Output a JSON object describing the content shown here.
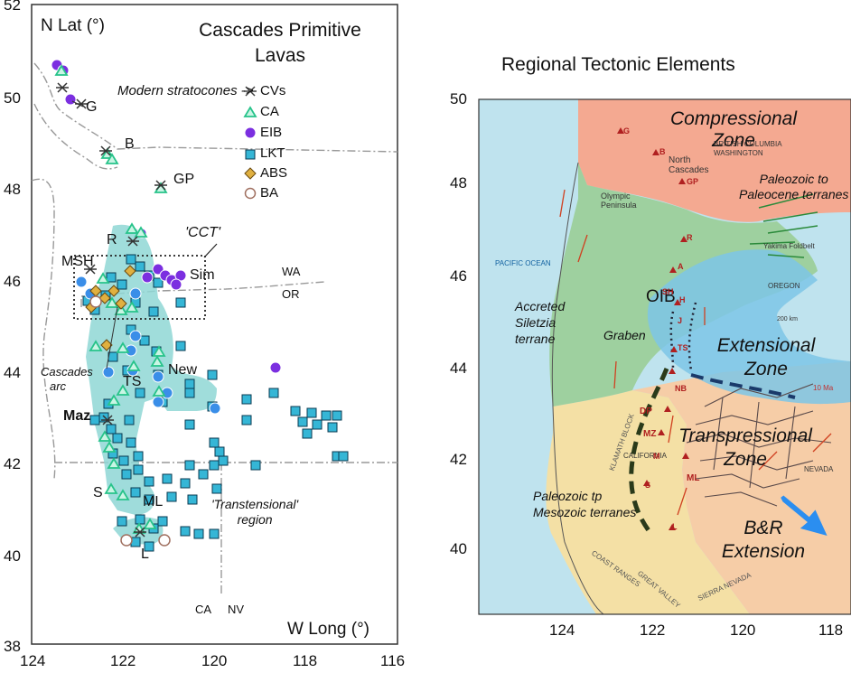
{
  "left_map": {
    "title_line1": "Cascades Primitive",
    "title_line2": "Lavas",
    "y_axis_label": "N Lat (°)",
    "x_axis_label": "W Long (°)",
    "y_ticks": [
      "52",
      "50",
      "48",
      "46",
      "44",
      "42",
      "40",
      "38"
    ],
    "x_ticks": [
      "124",
      "122",
      "120",
      "118",
      "116"
    ],
    "legend_heading": "Modern stratocones ->",
    "legend": [
      {
        "symbol": "asterisk",
        "label": "CVs",
        "color": "#444444"
      },
      {
        "symbol": "triangle",
        "label": "CA",
        "color": "#27c38a"
      },
      {
        "symbol": "circle",
        "label": "EIB",
        "color": "#7b2fe0"
      },
      {
        "symbol": "square",
        "label": "LKT",
        "color": "#35b6d6"
      },
      {
        "symbol": "diamond",
        "label": "ABS",
        "color": "#e0b040"
      },
      {
        "symbol": "circle-open",
        "label": "BA",
        "color": "#b07060"
      }
    ],
    "volcano_labels": [
      "G",
      "B",
      "GP",
      "R",
      "MSH",
      "Sim",
      "New",
      "TS",
      "Maz",
      "S",
      "ML",
      "L"
    ],
    "box_label": "'CCT'",
    "state_labels": [
      "WA",
      "OR",
      "CA",
      "NV"
    ],
    "region_labels": {
      "arc_line1": "Cascades",
      "arc_line2": "arc",
      "trans_line1": "'Transtensional'",
      "trans_line2": "region"
    }
  },
  "right_map": {
    "title": "Regional Tectonic Elements",
    "y_ticks": [
      "50",
      "48",
      "46",
      "44",
      "42",
      "40"
    ],
    "x_ticks": [
      "124",
      "122",
      "120",
      "118"
    ],
    "zones": {
      "compressional_1": "Compressional",
      "compressional_2": "Zone",
      "paleozoic_1": "Paleozoic to",
      "paleozoic_2": "Paleocene terranes",
      "accreted_1": "Accreted",
      "accreted_2": "Siletzia",
      "accreted_3": "terrane",
      "graben": "Graben",
      "oib": "OIB",
      "extensional_1": "Extensional",
      "extensional_2": "Zone",
      "transpressional_1": "Transpressional",
      "transpressional_2": "Zone",
      "mesozoic_1": "Paleozoic tp",
      "mesozoic_2": "Mesozoic  terranes",
      "br_1": "B&R",
      "br_2": "Extension"
    },
    "small_labels": {
      "pacific": "PACIFIC OCEAN",
      "bc": "BRITISH COLUMBIA",
      "wa": "WASHINGTON",
      "north_cascades": "North Cascades",
      "olympic": "Olympic Peninsula",
      "oregon": "OREGON",
      "nevada": "NEVADA",
      "california": "CALIFORNIA",
      "klamath": "KLAMATH BLOCK",
      "coast_ranges": "COAST RANGES",
      "sierra": "SIERRA NEVADA",
      "great_valley": "GREAT VALLEY",
      "yakima": "Yakima Foldbelt",
      "scale": "200 km",
      "ma": "10 Ma"
    },
    "volcano_codes": [
      "G",
      "B",
      "GP",
      "R",
      "SH",
      "A",
      "H",
      "J",
      "TS",
      "NB",
      "DP",
      "MZ",
      "M",
      "ML",
      "S",
      "L"
    ]
  }
}
